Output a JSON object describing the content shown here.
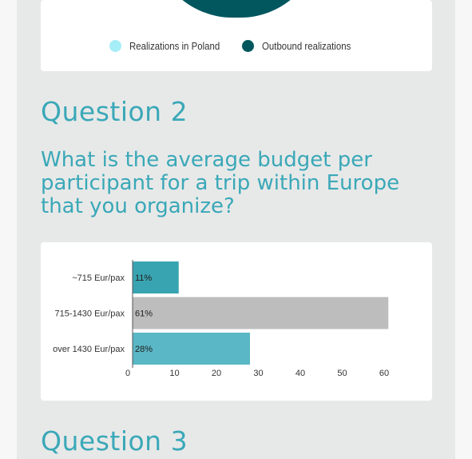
{
  "legend": {
    "items": [
      {
        "label": "Realizations in Poland",
        "color": "#a6eef7"
      },
      {
        "label": "Outbound realizations",
        "color": "#02575f"
      }
    ]
  },
  "question2": {
    "heading": "Question 2",
    "text": "What is the average budget per participant for a trip within Europe that you organize?"
  },
  "question3": {
    "heading": "Question 3"
  },
  "chart_data": {
    "type": "bar",
    "orientation": "horizontal",
    "categories": [
      "~715 Eur/pax",
      "715-1430 Eur/pax",
      "over 1430 Eur/pax"
    ],
    "values": [
      11,
      61,
      28
    ],
    "data_labels": [
      "11%",
      "61%",
      "28%"
    ],
    "colors": [
      "#39a4b1",
      "#bdbdbd",
      "#5ab7c5"
    ],
    "xlim": [
      0,
      60
    ],
    "xticks": [
      0,
      10,
      20,
      30,
      40,
      50,
      60
    ],
    "grid": false
  }
}
